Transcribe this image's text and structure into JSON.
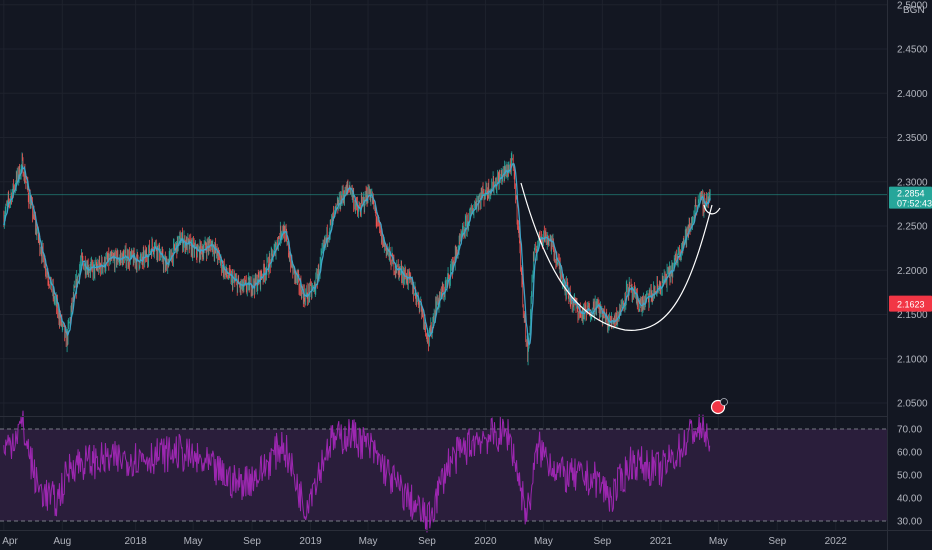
{
  "chart_data": [
    {
      "type": "candlestick",
      "currency_label": "BGN",
      "ylim": [
        2.03,
        2.5
      ],
      "y_ticks": [
        "2.5000",
        "2.4500",
        "2.4000",
        "2.3500",
        "2.3000",
        "2.2500",
        "2.2000",
        "2.1500",
        "2.1000",
        "2.0500"
      ],
      "x_ticks": [
        "Apr",
        "Aug",
        "2018",
        "May",
        "Sep",
        "2019",
        "May",
        "Sep",
        "2020",
        "May",
        "Sep",
        "2021",
        "May",
        "Sep",
        "2022"
      ],
      "x_range": [
        "2017-04",
        "2022-04"
      ],
      "price_anchors": [
        [
          "2017-04-01",
          2.26
        ],
        [
          "2017-04-20",
          2.29
        ],
        [
          "2017-05-10",
          2.32
        ],
        [
          "2017-05-25",
          2.28
        ],
        [
          "2017-06-15",
          2.23
        ],
        [
          "2017-07-05",
          2.19
        ],
        [
          "2017-07-25",
          2.15
        ],
        [
          "2017-08-10",
          2.12
        ],
        [
          "2017-08-25",
          2.17
        ],
        [
          "2017-09-10",
          2.21
        ],
        [
          "2017-10-05",
          2.2
        ],
        [
          "2017-11-05",
          2.21
        ],
        [
          "2017-12-10",
          2.215
        ],
        [
          "2018-01-15",
          2.21
        ],
        [
          "2018-02-10",
          2.23
        ],
        [
          "2018-03-05",
          2.205
        ],
        [
          "2018-04-05",
          2.235
        ],
        [
          "2018-05-10",
          2.22
        ],
        [
          "2018-06-10",
          2.23
        ],
        [
          "2018-07-10",
          2.195
        ],
        [
          "2018-08-10",
          2.18
        ],
        [
          "2018-09-10",
          2.185
        ],
        [
          "2018-10-10",
          2.21
        ],
        [
          "2018-11-05",
          2.25
        ],
        [
          "2018-11-25",
          2.2
        ],
        [
          "2018-12-20",
          2.17
        ],
        [
          "2019-01-10",
          2.18
        ],
        [
          "2019-02-05",
          2.24
        ],
        [
          "2019-03-05",
          2.28
        ],
        [
          "2019-03-25",
          2.295
        ],
        [
          "2019-04-10",
          2.265
        ],
        [
          "2019-05-05",
          2.29
        ],
        [
          "2019-05-30",
          2.235
        ],
        [
          "2019-06-25",
          2.205
        ],
        [
          "2019-07-25",
          2.19
        ],
        [
          "2019-08-20",
          2.16
        ],
        [
          "2019-09-05",
          2.12
        ],
        [
          "2019-09-20",
          2.16
        ],
        [
          "2019-10-10",
          2.18
        ],
        [
          "2019-10-30",
          2.215
        ],
        [
          "2019-11-25",
          2.255
        ],
        [
          "2019-12-15",
          2.28
        ],
        [
          "2020-01-05",
          2.29
        ],
        [
          "2020-01-25",
          2.3
        ],
        [
          "2020-02-10",
          2.31
        ],
        [
          "2020-02-28",
          2.32
        ],
        [
          "2020-03-10",
          2.25
        ],
        [
          "2020-03-22",
          2.15
        ],
        [
          "2020-03-30",
          2.1
        ],
        [
          "2020-04-10",
          2.21
        ],
        [
          "2020-04-25",
          2.24
        ],
        [
          "2020-05-15",
          2.235
        ],
        [
          "2020-06-05",
          2.2
        ],
        [
          "2020-06-25",
          2.17
        ],
        [
          "2020-07-20",
          2.15
        ],
        [
          "2020-08-20",
          2.16
        ],
        [
          "2020-09-15",
          2.14
        ],
        [
          "2020-10-05",
          2.15
        ],
        [
          "2020-10-25",
          2.18
        ],
        [
          "2020-11-20",
          2.16
        ],
        [
          "2020-12-10",
          2.17
        ],
        [
          "2021-01-05",
          2.185
        ],
        [
          "2021-01-25",
          2.2
        ],
        [
          "2021-02-15",
          2.23
        ],
        [
          "2021-03-05",
          2.25
        ],
        [
          "2021-03-20",
          2.28
        ],
        [
          "2021-04-02",
          2.275
        ],
        [
          "2021-04-15",
          2.285
        ]
      ],
      "last_price": "2.2854",
      "countdown": "07:52:43",
      "alert_price": "2.1623",
      "indicator": "moving average"
    },
    {
      "type": "line",
      "indicator": "RSI",
      "ylim": [
        28,
        78
      ],
      "y_ticks": [
        "70.00",
        "60.00",
        "50.00",
        "40.00",
        "30.00"
      ],
      "bands": [
        70,
        30
      ],
      "rsi_anchors": [
        [
          "2017-04-01",
          60
        ],
        [
          "2017-05-10",
          72
        ],
        [
          "2017-06-10",
          45
        ],
        [
          "2017-07-20",
          38
        ],
        [
          "2017-08-20",
          55
        ],
        [
          "2017-10-01",
          56
        ],
        [
          "2017-12-01",
          57
        ],
        [
          "2018-02-01",
          58
        ],
        [
          "2018-04-01",
          60
        ],
        [
          "2018-06-01",
          54
        ],
        [
          "2018-08-01",
          46
        ],
        [
          "2018-09-15",
          50
        ],
        [
          "2018-11-05",
          64
        ],
        [
          "2018-12-20",
          36
        ],
        [
          "2019-02-10",
          64
        ],
        [
          "2019-03-25",
          68
        ],
        [
          "2019-05-05",
          62
        ],
        [
          "2019-07-01",
          45
        ],
        [
          "2019-09-05",
          30
        ],
        [
          "2019-10-15",
          55
        ],
        [
          "2019-12-15",
          66
        ],
        [
          "2020-02-20",
          68
        ],
        [
          "2020-03-28",
          32
        ],
        [
          "2020-04-20",
          62
        ],
        [
          "2020-06-10",
          50
        ],
        [
          "2020-08-20",
          48
        ],
        [
          "2020-09-20",
          40
        ],
        [
          "2020-11-01",
          56
        ],
        [
          "2021-01-01",
          52
        ],
        [
          "2021-02-15",
          62
        ],
        [
          "2021-03-10",
          70
        ],
        [
          "2021-04-10",
          68
        ],
        [
          "2021-04-15",
          55
        ]
      ]
    }
  ],
  "colors": {
    "background": "#131722",
    "rsi_band_fill": "#2a1e3b",
    "rsi_line": "#9c27b0",
    "ma_line": "#3fa4c8",
    "candle_up": "#26a69a",
    "candle_down": "#ef5350",
    "price_tag": "#26a69a",
    "alert_tag": "#f23645",
    "pattern_curve": "#ffffff",
    "last_price_line": "#26a69a"
  }
}
